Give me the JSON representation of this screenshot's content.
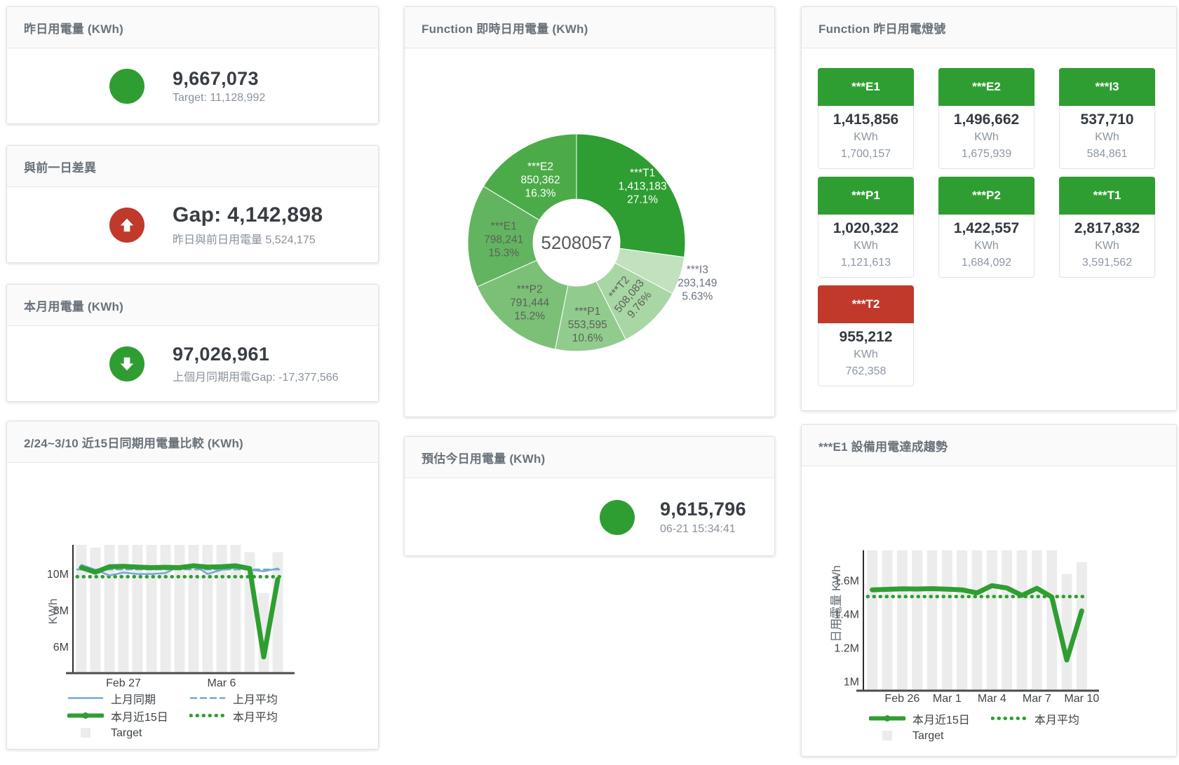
{
  "colors": {
    "green": "#2F9E32",
    "red": "#C0392B",
    "blue": "#74A7D3",
    "bar": "#ECECEC"
  },
  "panels": {
    "yesterday": {
      "title": "昨日用電量 (KWh)",
      "value": "9,667,073",
      "subtitle": "Target: 11,128,992"
    },
    "day_gap": {
      "title": "與前一日差異",
      "value": "Gap: 4,142,898",
      "subtitle": "昨日與前日用電量 5,524,175"
    },
    "month": {
      "title": "本月用電量 (KWh)",
      "value": "97,026,961",
      "subtitle": "上個月同期用電Gap: -17,377,566"
    },
    "function_realtime": {
      "title": "Function 即時日用電量 (KWh)"
    },
    "function_lights": {
      "title": "Function 昨日用電燈號"
    },
    "comparison": {
      "title": "2/24~3/10 近15日同期用電量比較 (KWh)"
    },
    "estimate": {
      "title": "預估今日用電量 (KWh)",
      "value": "9,615,796",
      "subtitle": "06-21 15:34:41"
    },
    "e1_trend": {
      "title": "***E1 設備用電達成趨勢"
    }
  },
  "lights_tiles": [
    {
      "label": "***E1",
      "value": "1,415,856",
      "unit": "KWh",
      "target": "1,700,157",
      "status_color": "#2F9E32"
    },
    {
      "label": "***E2",
      "value": "1,496,662",
      "unit": "KWh",
      "target": "1,675,939",
      "status_color": "#2F9E32"
    },
    {
      "label": "***I3",
      "value": "537,710",
      "unit": "KWh",
      "target": "584,861",
      "status_color": "#2F9E32"
    },
    {
      "label": "***P1",
      "value": "1,020,322",
      "unit": "KWh",
      "target": "1,121,613",
      "status_color": "#2F9E32"
    },
    {
      "label": "***P2",
      "value": "1,422,557",
      "unit": "KWh",
      "target": "1,684,092",
      "status_color": "#2F9E32"
    },
    {
      "label": "***T1",
      "value": "2,817,832",
      "unit": "KWh",
      "target": "3,591,562",
      "status_color": "#2F9E32"
    },
    {
      "label": "***T2",
      "value": "955,212",
      "unit": "KWh",
      "target": "762,358",
      "status_color": "#C0392B"
    }
  ],
  "chart_data": [
    {
      "type": "pie",
      "title": "Function 即時日用電量 (KWh)",
      "center_total": "5208057",
      "slices": [
        {
          "name": "***T1",
          "value": 1413183,
          "value_label": "1,413,183",
          "pct": "27.1%",
          "color": "#2E9D32",
          "label_style": "light",
          "label_radius": 125
        },
        {
          "name": "***I3",
          "value": 293149,
          "value_label": "293,149",
          "pct": "5.63%",
          "color": "#C2E1BE",
          "label_style": "outside",
          "label_radius": 181
        },
        {
          "name": "***T2",
          "value": 508083,
          "value_label": "508,083",
          "pct": "9.76%",
          "color": "#A9D6A5",
          "label_style": "dark",
          "label_radius": 105,
          "label_rotation": -50
        },
        {
          "name": "***P1",
          "value": 553595,
          "value_label": "553,595",
          "pct": "10.6%",
          "color": "#92CB8E",
          "label_style": "dark",
          "label_radius": 116
        },
        {
          "name": "***P2",
          "value": 791444,
          "value_label": "791,444",
          "pct": "15.2%",
          "color": "#7CC078",
          "label_style": "dark",
          "label_radius": 107
        },
        {
          "name": "***E1",
          "value": 798241,
          "value_label": "798,241",
          "pct": "15.3%",
          "color": "#63B460",
          "label_style": "dark",
          "label_radius": 104
        },
        {
          "name": "***E2",
          "value": 850362,
          "value_label": "850,362",
          "pct": "16.3%",
          "color": "#4BAB48",
          "label_style": "light",
          "label_radius": 105
        }
      ]
    },
    {
      "type": "line",
      "title": "2/24~3/10 近15日同期用電量比較 (KWh)",
      "ylabel": "KWh",
      "unit": "M KWh",
      "ylim": [
        4.6,
        11.7
      ],
      "categories": [
        "2/24",
        "2/25",
        "2/26",
        "2/27",
        "2/28",
        "3/1",
        "3/2",
        "3/3",
        "3/4",
        "3/5",
        "3/6",
        "3/7",
        "3/8",
        "3/9",
        "3/10"
      ],
      "yticks": [
        {
          "v": 10,
          "label": "10M"
        },
        {
          "v": 8,
          "label": "8M"
        },
        {
          "v": 6,
          "label": "6M"
        }
      ],
      "xticks": [
        {
          "i": 3,
          "label": "Feb 27"
        },
        {
          "i": 10,
          "label": "Mar 6"
        }
      ],
      "target_bars": [
        11.6,
        11.45,
        11.6,
        11.6,
        11.6,
        11.6,
        11.6,
        11.6,
        11.6,
        11.6,
        11.6,
        11.6,
        11.2,
        8.95,
        11.2
      ],
      "series": [
        {
          "name": "上月同期",
          "style": "line-blue",
          "values": [
            10.5,
            10.23,
            9.92,
            10.08,
            10.0,
            10.0,
            10.05,
            10.42,
            10.5,
            10.0,
            10.23,
            10.35,
            10.23,
            10.15,
            10.3
          ]
        },
        {
          "name": "上月平均",
          "style": "dash-blue",
          "avg": 10.25
        },
        {
          "name": "本月近15日",
          "style": "line-green-thick",
          "values": [
            10.35,
            10.1,
            10.4,
            10.42,
            10.38,
            10.35,
            10.37,
            10.35,
            10.45,
            10.38,
            10.4,
            10.45,
            10.3,
            5.45,
            9.7
          ]
        },
        {
          "name": "本月平均",
          "style": "dot-green",
          "avg": 9.85
        },
        {
          "name": "Target",
          "style": "square-gray"
        }
      ],
      "legend_position": "bottom"
    },
    {
      "type": "line",
      "title": "***E1 設備用電達成趨勢",
      "ylabel": "日用電量 KWh",
      "unit": "M KWh",
      "ylim": [
        0.95,
        1.8
      ],
      "categories": [
        "2/24",
        "2/25",
        "2/26",
        "2/27",
        "2/28",
        "3/1",
        "3/2",
        "3/3",
        "3/4",
        "3/5",
        "3/6",
        "3/7",
        "3/8",
        "3/9",
        "3/10"
      ],
      "yticks": [
        {
          "v": 1.6,
          "label": "1.6M"
        },
        {
          "v": 1.4,
          "label": "1.4M"
        },
        {
          "v": 1.2,
          "label": "1.2M"
        },
        {
          "v": 1.0,
          "label": "1M"
        }
      ],
      "xticks": [
        {
          "i": 2,
          "label": "Feb 26"
        },
        {
          "i": 5,
          "label": "Mar 1"
        },
        {
          "i": 8,
          "label": "Mar 4"
        },
        {
          "i": 11,
          "label": "Mar 7"
        },
        {
          "i": 14,
          "label": "Mar 10"
        }
      ],
      "target_bars": [
        1.78,
        1.78,
        1.78,
        1.78,
        1.78,
        1.78,
        1.78,
        1.78,
        1.78,
        1.78,
        1.78,
        1.78,
        1.78,
        1.64,
        1.71
      ],
      "series": [
        {
          "name": "本月近15日",
          "style": "line-green-thick",
          "values": [
            1.545,
            1.548,
            1.551,
            1.55,
            1.552,
            1.549,
            1.545,
            1.527,
            1.57,
            1.556,
            1.512,
            1.554,
            1.502,
            1.128,
            1.42
          ]
        },
        {
          "name": "本月平均",
          "style": "dot-green",
          "avg": 1.505
        },
        {
          "name": "Target",
          "style": "square-gray"
        }
      ],
      "legend_position": "bottom"
    }
  ]
}
